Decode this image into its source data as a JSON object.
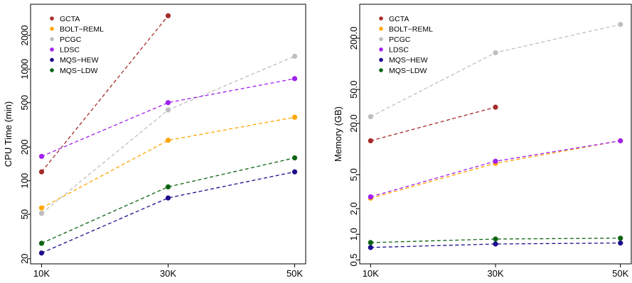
{
  "chart_data": [
    {
      "type": "line",
      "title": "",
      "xlabel": "",
      "ylabel": "CPU Time (min)",
      "yscale": "log",
      "ylim": [
        18,
        3800
      ],
      "x": [
        10,
        30,
        50
      ],
      "xtick_labels": [
        "10K",
        "30K",
        "50K"
      ],
      "yticks": [
        20,
        50,
        100,
        200,
        500,
        1000,
        2000
      ],
      "ytick_labels": [
        "20",
        "50",
        "100",
        "200",
        "500",
        "1000",
        "2000"
      ],
      "legend": "top-left",
      "grid": false,
      "series": [
        {
          "name": "GCTA",
          "color": "#a52a2a",
          "values": [
            120,
            3000,
            null
          ]
        },
        {
          "name": "BOLT−REML",
          "color": "#ffa500",
          "values": [
            57,
            230,
            370
          ]
        },
        {
          "name": "PCGC",
          "color": "#bebebe",
          "values": [
            51,
            430,
            1300
          ]
        },
        {
          "name": "LDSC",
          "color": "#a020f0",
          "values": [
            165,
            500,
            820
          ]
        },
        {
          "name": "MQS−HEW",
          "color": "#1c0d8c",
          "values": [
            22.5,
            70,
            120
          ]
        },
        {
          "name": "MQS−LDW",
          "color": "#0b6410",
          "values": [
            27.5,
            88,
            160
          ]
        }
      ]
    },
    {
      "type": "line",
      "title": "",
      "xlabel": "",
      "ylabel": "Memory (GB)",
      "yscale": "log",
      "ylim": [
        0.45,
        500
      ],
      "x": [
        10,
        30,
        50
      ],
      "xtick_labels": [
        "10K",
        "30K",
        "50K"
      ],
      "yticks": [
        0.5,
        1.0,
        2.0,
        5.0,
        20.0,
        50.0,
        200.0
      ],
      "ytick_labels": [
        "0.5",
        "1.0",
        "2.0",
        "5.0",
        "20.0",
        "50.0",
        "200.0"
      ],
      "legend": "top-left",
      "grid": false,
      "series": [
        {
          "name": "GCTA",
          "color": "#a52a2a",
          "values": [
            12.5,
            31,
            null
          ]
        },
        {
          "name": "BOLT−REML",
          "color": "#ffa500",
          "values": [
            2.65,
            6.8,
            12.5
          ]
        },
        {
          "name": "PCGC",
          "color": "#bebebe",
          "values": [
            24,
            135,
            290
          ]
        },
        {
          "name": "LDSC",
          "color": "#a020f0",
          "values": [
            2.75,
            7.2,
            12.5
          ]
        },
        {
          "name": "MQS−HEW",
          "color": "#1c0d8c",
          "values": [
            0.7,
            0.77,
            0.79
          ]
        },
        {
          "name": "MQS−LDW",
          "color": "#0b6410",
          "values": [
            0.8,
            0.88,
            0.9
          ]
        }
      ]
    }
  ]
}
